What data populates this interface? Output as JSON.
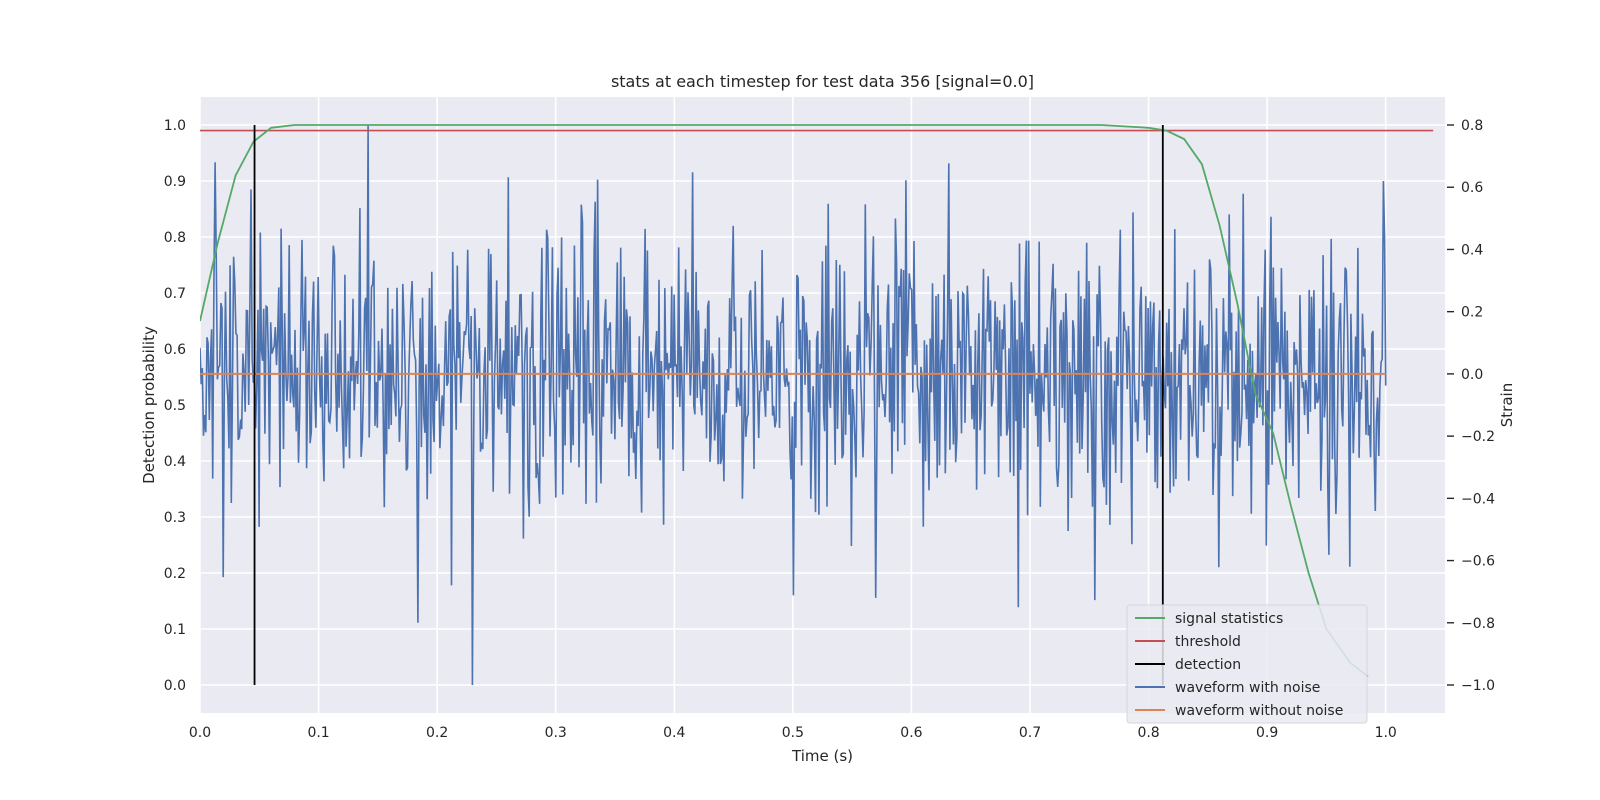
{
  "chart_data": {
    "type": "line",
    "title": "stats at each timestep for test data 356 [signal=0.0]",
    "xlabel": "Time (s)",
    "ylabel_left": "Detection probability",
    "ylabel_right": "Strain",
    "xlim": [
      0.0,
      1.05
    ],
    "ylim_left": [
      -0.05,
      1.05
    ],
    "ylim_right": [
      -1.09,
      0.89
    ],
    "x_ticks": [
      0.0,
      0.1,
      0.2,
      0.3,
      0.4,
      0.5,
      0.6,
      0.7,
      0.8,
      0.9,
      1.0
    ],
    "x_tick_labels": [
      "0.0",
      "0.1",
      "0.2",
      "0.3",
      "0.4",
      "0.5",
      "0.6",
      "0.7",
      "0.8",
      "0.9",
      "1.0"
    ],
    "y_left_ticks": [
      0.0,
      0.1,
      0.2,
      0.3,
      0.4,
      0.5,
      0.6,
      0.7,
      0.8,
      0.9,
      1.0
    ],
    "y_left_tick_labels": [
      "0.0",
      "0.1",
      "0.2",
      "0.3",
      "0.4",
      "0.5",
      "0.6",
      "0.7",
      "0.8",
      "0.9",
      "1.0"
    ],
    "y_right_ticks": [
      0.8,
      0.6,
      0.4,
      0.2,
      0.0,
      -0.2,
      -0.4,
      -0.6,
      -0.8,
      -1.0
    ],
    "y_right_tick_labels": [
      "0.8",
      "0.6",
      "0.4",
      "0.2",
      "0.0",
      "−0.2",
      "−0.4",
      "−0.6",
      "−0.8",
      "−1.0"
    ],
    "grid": true,
    "legend_position": "lower-right",
    "series": [
      {
        "name": "signal statistics",
        "axis": "left",
        "color": "#55a868",
        "x": [
          0.0,
          0.015,
          0.03,
          0.045,
          0.06,
          0.08,
          0.1,
          0.2,
          0.4,
          0.6,
          0.76,
          0.8,
          0.815,
          0.83,
          0.845,
          0.86,
          0.875,
          0.89,
          0.905,
          0.92,
          0.935,
          0.95,
          0.97,
          0.985
        ],
        "y": [
          0.65,
          0.79,
          0.91,
          0.97,
          0.995,
          1.0,
          1.0,
          1.0,
          1.0,
          1.0,
          1.0,
          0.995,
          0.99,
          0.975,
          0.93,
          0.82,
          0.68,
          0.52,
          0.45,
          0.32,
          0.2,
          0.1,
          0.04,
          0.015
        ]
      },
      {
        "name": "threshold",
        "axis": "left",
        "color": "#c44e52",
        "x": [
          0.0,
          1.04
        ],
        "y": [
          0.99,
          0.99
        ]
      },
      {
        "name": "detection",
        "axis": "left",
        "color": "#000000",
        "segments": [
          {
            "x": 0.046,
            "y0": 0.0,
            "y1": 1.0
          },
          {
            "x": 0.812,
            "y0": 0.0,
            "y1": 1.0
          }
        ]
      },
      {
        "name": "waveform with noise",
        "axis": "right",
        "color": "#4c72b0",
        "x_range": [
          0.0,
          1.0
        ],
        "n_points": 1024,
        "value_range": [
          -1.0,
          0.8
        ],
        "highlighted_values": [
          {
            "x": 0.013,
            "y": 0.68
          },
          {
            "x": 0.142,
            "y": 0.8
          },
          {
            "x": 0.184,
            "y": -0.8
          },
          {
            "x": 0.23,
            "y": -1.0
          },
          {
            "x": 0.57,
            "y": -0.72
          },
          {
            "x": 0.69,
            "y": -0.75
          },
          {
            "x": 0.998,
            "y": 0.62
          }
        ]
      },
      {
        "name": "waveform without noise",
        "axis": "right",
        "color": "#dd8452",
        "x": [
          0.0,
          1.0
        ],
        "y": [
          0.0,
          0.0
        ]
      }
    ]
  }
}
